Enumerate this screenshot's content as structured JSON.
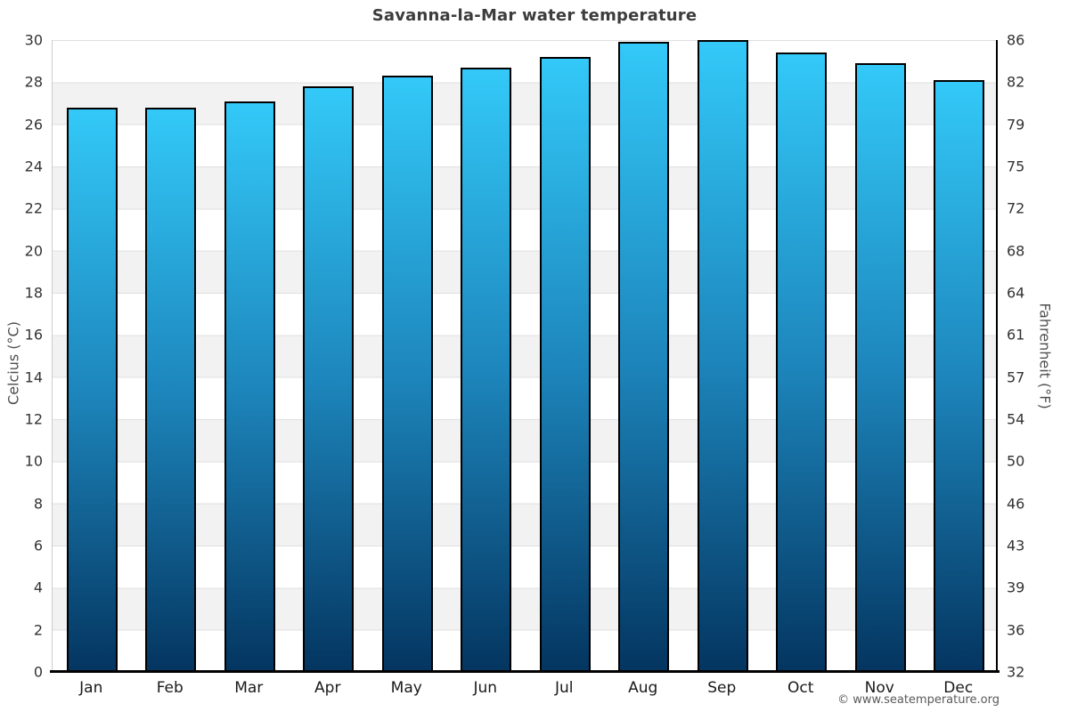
{
  "chart_data": {
    "type": "bar",
    "title": "Savanna-la-Mar water temperature",
    "categories": [
      "Jan",
      "Feb",
      "Mar",
      "Apr",
      "May",
      "Jun",
      "Jul",
      "Aug",
      "Sep",
      "Oct",
      "Nov",
      "Dec"
    ],
    "values": [
      26.8,
      26.8,
      27.1,
      27.8,
      28.3,
      28.7,
      29.2,
      29.9,
      30.0,
      29.4,
      28.9,
      28.1
    ],
    "ylabel": "Celcius (°C)",
    "ylabel_right": "Fahrenheit (°F)",
    "xlabel": "",
    "ylim": [
      0,
      30
    ],
    "celsius_ticks": [
      30,
      28,
      26,
      24,
      22,
      20,
      18,
      16,
      14,
      12,
      10,
      8,
      6,
      4,
      2,
      0
    ],
    "fahrenheit_tick_labels": [
      "86",
      "82",
      "79",
      "75",
      "72",
      "68",
      "64",
      "61",
      "57",
      "54",
      "50",
      "46",
      "43",
      "39",
      "36",
      "32"
    ],
    "grid": "horizontal gridlines every 2°C with alternating white/grey bands",
    "legend": "none"
  },
  "footer": {
    "credit": "© www.seatemperature.org"
  },
  "colors": {
    "bar_gradient_top": "#33c9f8",
    "bar_gradient_mid": "#1d86bc",
    "bar_gradient_bottom": "#043560",
    "bar_border": "#000000",
    "band_grey": "#f2f2f2",
    "gridline": "#e0e0e0",
    "left_spine": "#cccccc",
    "right_spine": "#000000",
    "baseline": "#000000",
    "title_text": "#3c3c3c",
    "tick_text": "#333333",
    "axis_title_text": "#4f4f4f",
    "footer_text": "#5a5a5a"
  }
}
